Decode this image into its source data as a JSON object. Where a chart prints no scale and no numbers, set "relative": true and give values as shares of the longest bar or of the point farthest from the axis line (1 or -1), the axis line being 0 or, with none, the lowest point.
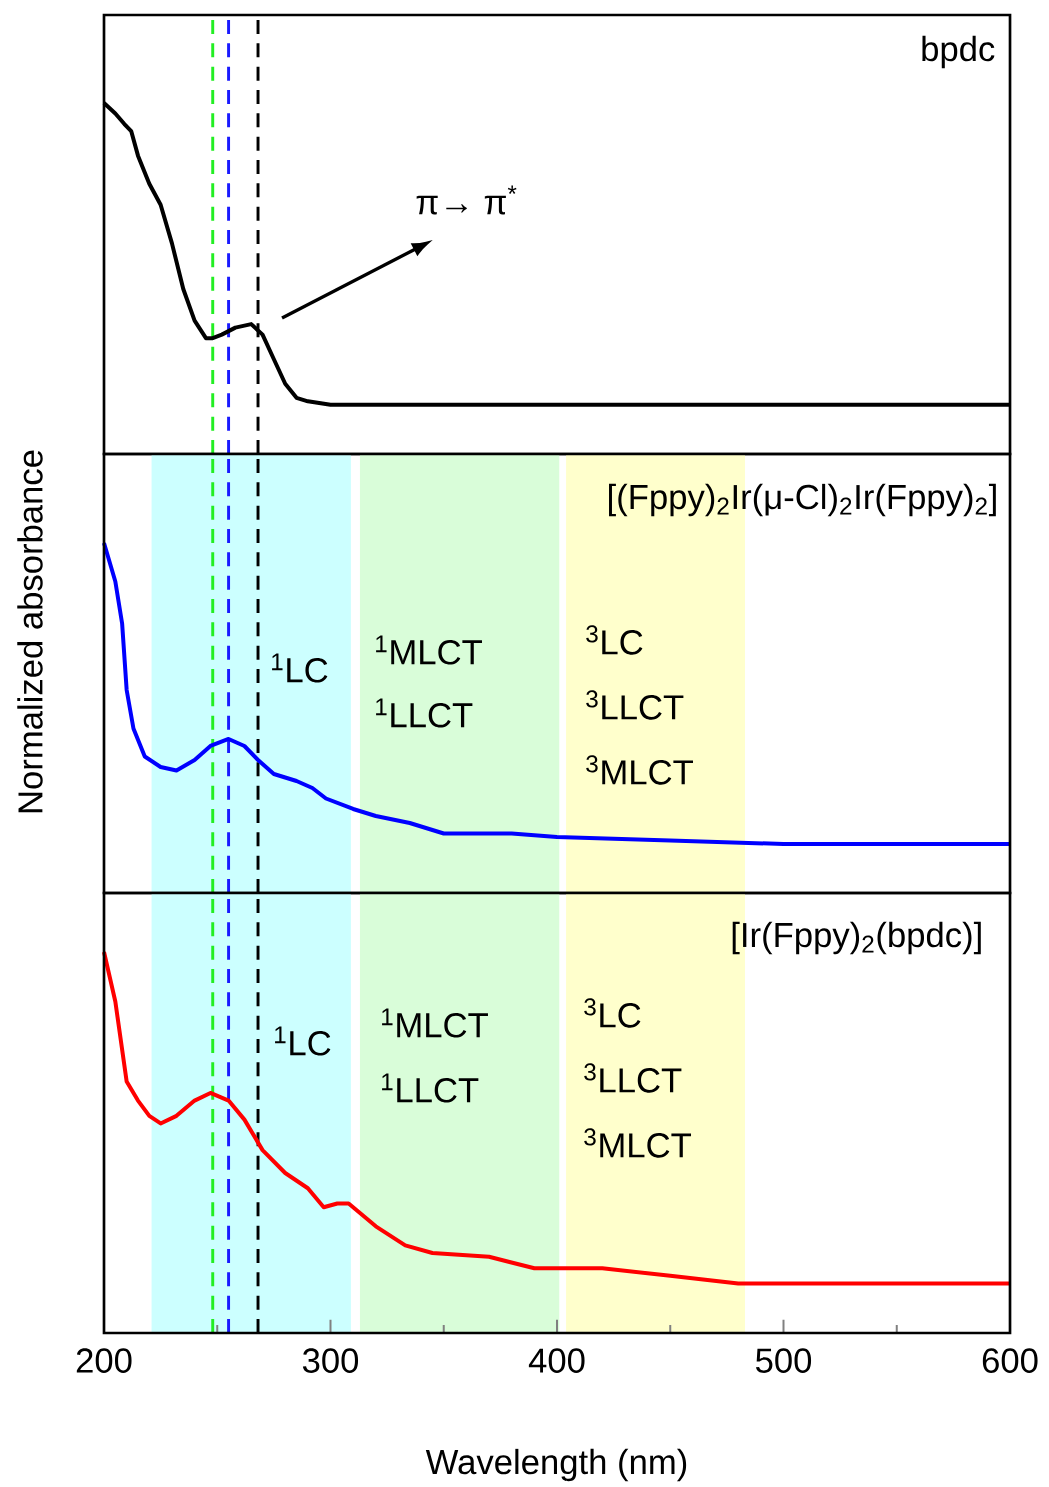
{
  "chart_data": [
    {
      "type": "line",
      "title": "bpdc",
      "relative": true,
      "xlim": [
        200,
        600
      ],
      "xticks": [
        200,
        300,
        400,
        500,
        600
      ],
      "tick_labels": false,
      "x": [
        200,
        205,
        209,
        212,
        215,
        220,
        225,
        230,
        235,
        240,
        245,
        248,
        252,
        258,
        265,
        270,
        275,
        280,
        285,
        290,
        300,
        350,
        400,
        500,
        600
      ],
      "series": [
        {
          "color": "#000000",
          "values": [
            1.0,
            0.97,
            0.94,
            0.92,
            0.85,
            0.77,
            0.71,
            0.6,
            0.47,
            0.38,
            0.33,
            0.33,
            0.34,
            0.36,
            0.37,
            0.34,
            0.27,
            0.2,
            0.16,
            0.15,
            0.14,
            0.14,
            0.14,
            0.14,
            0.14
          ]
        }
      ],
      "ref_lines": [
        {
          "axis": "x",
          "value": 248,
          "color": "#22ee22",
          "line_style": "dashed"
        },
        {
          "axis": "x",
          "value": 255,
          "color": "#1a1aff",
          "line_style": "dashed"
        },
        {
          "axis": "x",
          "value": 268,
          "color": "#000000",
          "line_style": "dashed"
        }
      ],
      "annotations": [
        "π→ π$^{*}$"
      ]
    },
    {
      "type": "line",
      "title": "[(Fppy)$_{2}$Ir(μ-Cl)$_{2}$Ir(Fppy)$_{2}$]",
      "ylabel": "Normalized absorbance",
      "relative": true,
      "xlim": [
        200,
        600
      ],
      "xticks": [
        200,
        300,
        400,
        500,
        600
      ],
      "tick_labels": false,
      "x": [
        200,
        205,
        208,
        210,
        213,
        218,
        225,
        232,
        240,
        247,
        255,
        262,
        268,
        275,
        285,
        292,
        298,
        310,
        320,
        335,
        350,
        380,
        400,
        450,
        500,
        600
      ],
      "series": [
        {
          "color": "#0000ff",
          "values": [
            1.0,
            0.89,
            0.77,
            0.58,
            0.47,
            0.39,
            0.36,
            0.35,
            0.38,
            0.42,
            0.44,
            0.42,
            0.38,
            0.34,
            0.32,
            0.3,
            0.27,
            0.24,
            0.22,
            0.2,
            0.17,
            0.17,
            0.16,
            0.15,
            0.14,
            0.14
          ]
        }
      ],
      "bands": [
        {
          "axis": "x",
          "from": 221,
          "to": 309,
          "color": "#ccffff"
        },
        {
          "axis": "x",
          "from": 313,
          "to": 401,
          "color": "#d9fdd9"
        },
        {
          "axis": "x",
          "from": 404,
          "to": 483,
          "color": "#ffffcc"
        }
      ],
      "ref_lines": [
        {
          "axis": "x",
          "value": 248,
          "color": "#22ee22",
          "line_style": "dashed"
        },
        {
          "axis": "x",
          "value": 255,
          "color": "#1a1aff",
          "line_style": "dashed"
        },
        {
          "axis": "x",
          "value": 268,
          "color": "#000000",
          "line_style": "dashed"
        }
      ],
      "annotations": [
        "$^{1}$LC",
        "$^{1}$MLCT",
        "$^{1}$LLCT",
        "$^{3}$LC",
        "$^{3}$LLCT",
        "$^{3}$MLCT"
      ]
    },
    {
      "type": "line",
      "title": "[Ir(Fppy)$_{2}$(bpdc)]",
      "xlabel": "Wavelength (nm)",
      "relative": true,
      "xlim": [
        200,
        600
      ],
      "xticks": [
        200,
        300,
        400,
        500,
        600
      ],
      "tick_labels": "x",
      "x": [
        200,
        205,
        210,
        215,
        220,
        225,
        232,
        240,
        247,
        255,
        262,
        270,
        280,
        290,
        297,
        303,
        308,
        320,
        333,
        345,
        370,
        390,
        420,
        450,
        480,
        520,
        600
      ],
      "series": [
        {
          "color": "#ff0000",
          "values": [
            1.0,
            0.87,
            0.66,
            0.61,
            0.57,
            0.55,
            0.57,
            0.61,
            0.63,
            0.61,
            0.56,
            0.48,
            0.42,
            0.38,
            0.33,
            0.34,
            0.34,
            0.28,
            0.23,
            0.21,
            0.2,
            0.17,
            0.17,
            0.15,
            0.13,
            0.13,
            0.13
          ]
        }
      ],
      "bands": [
        {
          "axis": "x",
          "from": 221,
          "to": 309,
          "color": "#ccffff"
        },
        {
          "axis": "x",
          "from": 313,
          "to": 401,
          "color": "#d9fdd9"
        },
        {
          "axis": "x",
          "from": 404,
          "to": 483,
          "color": "#ffffcc"
        }
      ],
      "ref_lines": [
        {
          "axis": "x",
          "value": 248,
          "color": "#22ee22",
          "line_style": "dashed"
        },
        {
          "axis": "x",
          "value": 255,
          "color": "#1a1aff",
          "line_style": "dashed"
        },
        {
          "axis": "x",
          "value": 268,
          "color": "#000000",
          "line_style": "dashed"
        }
      ],
      "annotations": [
        "$^{1}$LC",
        "$^{1}$MLCT",
        "$^{1}$LLCT",
        "$^{3}$LC",
        "$^{3}$LLCT",
        "$^{3}$MLCT"
      ]
    }
  ]
}
